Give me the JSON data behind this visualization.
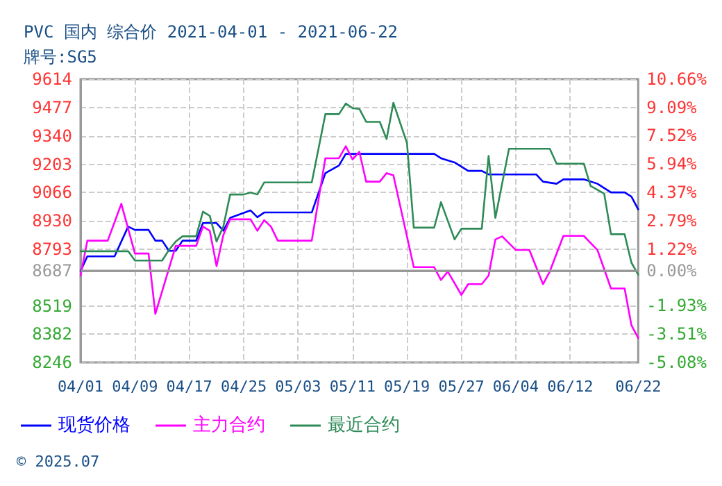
{
  "chart_data": {
    "type": "line",
    "title": "PVC 国内 综合价 2021-04-01 - 2021-06-22",
    "subtitle": "牌号:SG5",
    "annotations": [
      "© 2025.07"
    ],
    "xlim": [
      "2021-04-01",
      "2021-06-22"
    ],
    "xticks": [
      {
        "value": "2021-04-01",
        "label": "04/01"
      },
      {
        "value": "2021-04-09",
        "label": "04/09"
      },
      {
        "value": "2021-04-17",
        "label": "04/17"
      },
      {
        "value": "2021-04-25",
        "label": "04/25"
      },
      {
        "value": "2021-05-03",
        "label": "05/03"
      },
      {
        "value": "2021-05-11",
        "label": "05/11"
      },
      {
        "value": "2021-05-19",
        "label": "05/19"
      },
      {
        "value": "2021-05-27",
        "label": "05/27"
      },
      {
        "value": "2021-06-04",
        "label": "06/04"
      },
      {
        "value": "2021-06-12",
        "label": "06/12"
      },
      {
        "value": "2021-06-22",
        "label": "06/22"
      }
    ],
    "ylim": [
      8246,
      9614
    ],
    "yticks": [
      8246,
      8382,
      8519,
      8687,
      8793,
      8930,
      9066,
      9203,
      9340,
      9477,
      9614
    ],
    "y2lim": [
      -5.08,
      10.66
    ],
    "y2ticks": [
      {
        "value": -5.08,
        "label": "-5.08%"
      },
      {
        "value": -3.51,
        "label": "-3.51%"
      },
      {
        "value": -1.93,
        "label": "-1.93%"
      },
      {
        "value": 0,
        "label": "0.00%"
      },
      {
        "value": 1.22,
        "label": "1.22%"
      },
      {
        "value": 2.79,
        "label": "2.79%"
      },
      {
        "value": 4.37,
        "label": "4.37%"
      },
      {
        "value": 5.94,
        "label": "5.94%"
      },
      {
        "value": 7.52,
        "label": "7.52%"
      },
      {
        "value": 9.09,
        "label": "9.09%"
      },
      {
        "value": 10.66,
        "label": "10.66%"
      }
    ],
    "ref_lines": [
      {
        "axis": "y",
        "value": 8687,
        "color": "#999999",
        "line_style": "solid"
      }
    ],
    "grid": true,
    "legend": "bottom",
    "marker": "none",
    "line_style": "solid",
    "series": [
      {
        "name": "现货价格",
        "color": "#0000ff",
        "x": [
          "2021-04-01",
          "2021-04-02",
          "2021-04-06",
          "2021-04-08",
          "2021-04-09",
          "2021-04-11",
          "2021-04-12",
          "2021-04-13",
          "2021-04-14",
          "2021-04-15",
          "2021-04-16",
          "2021-04-18",
          "2021-04-19",
          "2021-04-21",
          "2021-04-22",
          "2021-04-23",
          "2021-04-26",
          "2021-04-27",
          "2021-04-28",
          "2021-05-05",
          "2021-05-07",
          "2021-05-09",
          "2021-05-10",
          "2021-05-23",
          "2021-05-24",
          "2021-05-26",
          "2021-05-28",
          "2021-05-30",
          "2021-05-31",
          "2021-06-07",
          "2021-06-08",
          "2021-06-10",
          "2021-06-11",
          "2021-06-14",
          "2021-06-16",
          "2021-06-18",
          "2021-06-20",
          "2021-06-21",
          "2021-06-22"
        ],
        "values": [
          8687,
          8758,
          8758,
          8902,
          8886,
          8886,
          8834,
          8834,
          8785,
          8785,
          8834,
          8834,
          8919,
          8919,
          8882,
          8944,
          8980,
          8947,
          8970,
          8970,
          9160,
          9197,
          9253,
          9253,
          9232,
          9212,
          9171,
          9171,
          9154,
          9154,
          9119,
          9109,
          9130,
          9130,
          9109,
          9067,
          9067,
          9047,
          8985
        ]
      },
      {
        "name": "主力合约",
        "color": "#ff00ff",
        "x": [
          "2021-04-01",
          "2021-04-02",
          "2021-04-05",
          "2021-04-07",
          "2021-04-09",
          "2021-04-11",
          "2021-04-12",
          "2021-04-15",
          "2021-04-18",
          "2021-04-19",
          "2021-04-20",
          "2021-04-21",
          "2021-04-22",
          "2021-04-23",
          "2021-04-26",
          "2021-04-27",
          "2021-04-28",
          "2021-04-29",
          "2021-04-30",
          "2021-05-05",
          "2021-05-07",
          "2021-05-09",
          "2021-05-10",
          "2021-05-11",
          "2021-05-12",
          "2021-05-13",
          "2021-05-15",
          "2021-05-16",
          "2021-05-17",
          "2021-05-20",
          "2021-05-23",
          "2021-05-24",
          "2021-05-25",
          "2021-05-27",
          "2021-05-28",
          "2021-05-30",
          "2021-05-31",
          "2021-06-01",
          "2021-06-02",
          "2021-06-04",
          "2021-06-06",
          "2021-06-08",
          "2021-06-09",
          "2021-06-11",
          "2021-06-14",
          "2021-06-16",
          "2021-06-18",
          "2021-06-20",
          "2021-06-21",
          "2021-06-22"
        ],
        "values": [
          8665,
          8834,
          8834,
          9012,
          8772,
          8772,
          8480,
          8809,
          8809,
          8902,
          8882,
          8711,
          8861,
          8937,
          8937,
          8882,
          8933,
          8902,
          8834,
          8834,
          9232,
          9232,
          9290,
          9226,
          9263,
          9119,
          9119,
          9160,
          9150,
          8706,
          8706,
          8644,
          8685,
          8572,
          8624,
          8624,
          8665,
          8840,
          8855,
          8789,
          8789,
          8624,
          8685,
          8857,
          8857,
          8789,
          8603,
          8603,
          8426,
          8364
        ]
      },
      {
        "name": "最近合约",
        "color": "#2e8b57",
        "x": [
          "2021-04-01",
          "2021-04-08",
          "2021-04-09",
          "2021-04-13",
          "2021-04-14",
          "2021-04-15",
          "2021-04-16",
          "2021-04-18",
          "2021-04-19",
          "2021-04-20",
          "2021-04-21",
          "2021-04-22",
          "2021-04-23",
          "2021-04-25",
          "2021-04-26",
          "2021-04-27",
          "2021-04-28",
          "2021-05-05",
          "2021-05-07",
          "2021-05-09",
          "2021-05-10",
          "2021-05-11",
          "2021-05-12",
          "2021-05-13",
          "2021-05-15",
          "2021-05-16",
          "2021-05-17",
          "2021-05-19",
          "2021-05-20",
          "2021-05-23",
          "2021-05-24",
          "2021-05-26",
          "2021-05-27",
          "2021-05-30",
          "2021-05-31",
          "2021-06-01",
          "2021-06-03",
          "2021-06-09",
          "2021-06-10",
          "2021-06-14",
          "2021-06-15",
          "2021-06-17",
          "2021-06-18",
          "2021-06-20",
          "2021-06-21",
          "2021-06-22"
        ],
        "values": [
          8783,
          8783,
          8738,
          8738,
          8789,
          8830,
          8855,
          8855,
          8974,
          8954,
          8830,
          8902,
          9057,
          9057,
          9067,
          9057,
          9115,
          9115,
          9445,
          9445,
          9496,
          9474,
          9470,
          9408,
          9408,
          9325,
          9500,
          9305,
          8897,
          8897,
          9020,
          8840,
          8892,
          8892,
          9243,
          8944,
          9278,
          9278,
          9206,
          9206,
          9098,
          9061,
          8865,
          8865,
          8728,
          8670
        ]
      }
    ]
  }
}
